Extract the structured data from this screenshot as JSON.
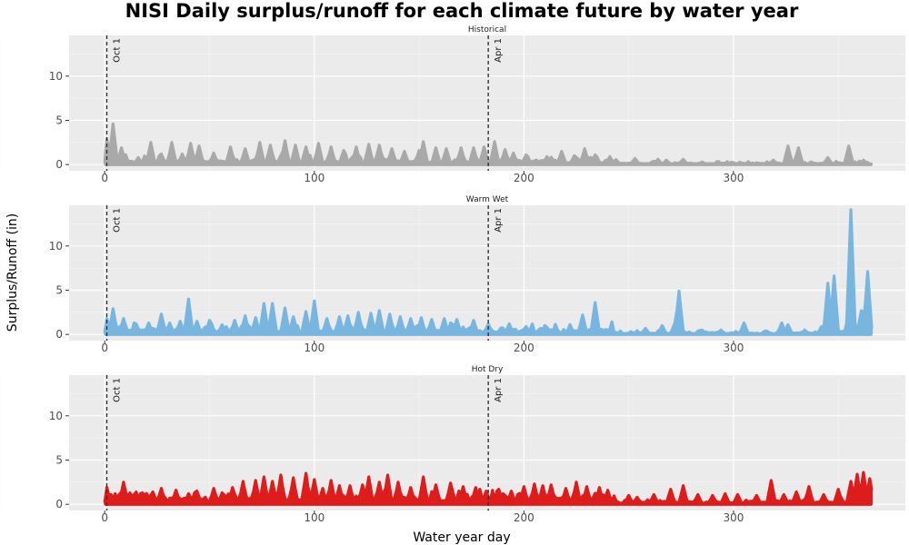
{
  "chart_data": {
    "type": "area",
    "title": "NISI Daily surplus/runoff for each climate future by water year",
    "xlabel": "Water year day",
    "ylabel": "Surplus/Runoff (in)",
    "xlim": [
      -17,
      382
    ],
    "ylim": [
      -0.7,
      14.6
    ],
    "x_ticks": [
      0,
      100,
      200,
      300
    ],
    "y_ticks": [
      0,
      5,
      10
    ],
    "grid": true,
    "legend": "none",
    "reference_lines": [
      {
        "x": 1,
        "label": "Oct 1"
      },
      {
        "x": 183,
        "label": "Apr 1"
      }
    ],
    "panels": [
      {
        "name": "Historical",
        "color": "#a9a9a9",
        "peaks": [
          [
            1,
            2.9
          ],
          [
            4,
            4.6
          ],
          [
            8,
            1.9
          ],
          [
            16,
            0.8
          ],
          [
            22,
            2.5
          ],
          [
            27,
            1.2
          ],
          [
            32,
            2.5
          ],
          [
            37,
            1.2
          ],
          [
            41,
            2.4
          ],
          [
            45,
            2.1
          ],
          [
            52,
            1.3
          ],
          [
            60,
            2.0
          ],
          [
            67,
            1.8
          ],
          [
            74,
            2.5
          ],
          [
            79,
            2.2
          ],
          [
            86,
            2.7
          ],
          [
            91,
            2.2
          ],
          [
            96,
            2.0
          ],
          [
            102,
            2.4
          ],
          [
            108,
            2.0
          ],
          [
            114,
            1.6
          ],
          [
            120,
            2.0
          ],
          [
            126,
            2.3
          ],
          [
            131,
            2.2
          ],
          [
            137,
            1.8
          ],
          [
            143,
            1.5
          ],
          [
            150,
            1.6
          ],
          [
            152,
            2.6
          ],
          [
            158,
            1.9
          ],
          [
            163,
            1.8
          ],
          [
            170,
            1.9
          ],
          [
            176,
            1.9
          ],
          [
            181,
            2.0
          ],
          [
            186,
            2.6
          ],
          [
            191,
            1.7
          ],
          [
            195,
            1.3
          ],
          [
            201,
            1.1
          ],
          [
            211,
            0.9
          ],
          [
            218,
            1.5
          ],
          [
            229,
            1.8
          ],
          [
            234,
            1.1
          ],
          [
            241,
            0.9
          ],
          [
            253,
            0.7
          ],
          [
            264,
            0.6
          ],
          [
            268,
            0.5
          ],
          [
            276,
            0.6
          ],
          [
            285,
            0.3
          ],
          [
            319,
            0.5
          ],
          [
            326,
            2.1
          ],
          [
            331,
            1.9
          ],
          [
            345,
            0.8
          ],
          [
            355,
            2.1
          ],
          [
            362,
            0.5
          ]
        ],
        "baseline": 0.35,
        "noise": 0.7
      },
      {
        "name": "Warm Wet",
        "color": "#79b6df",
        "peaks": [
          [
            1,
            1.8
          ],
          [
            4,
            2.9
          ],
          [
            9,
            1.8
          ],
          [
            15,
            1.2
          ],
          [
            21,
            1.3
          ],
          [
            27,
            2.3
          ],
          [
            31,
            1.3
          ],
          [
            36,
            1.5
          ],
          [
            40,
            4.0
          ],
          [
            44,
            1.5
          ],
          [
            50,
            1.6
          ],
          [
            56,
            1.1
          ],
          [
            62,
            1.6
          ],
          [
            67,
            2.1
          ],
          [
            72,
            1.9
          ],
          [
            76,
            3.5
          ],
          [
            80,
            3.5
          ],
          [
            86,
            3.0
          ],
          [
            90,
            2.0
          ],
          [
            96,
            2.6
          ],
          [
            100,
            3.8
          ],
          [
            106,
            1.8
          ],
          [
            112,
            2.0
          ],
          [
            116,
            2.1
          ],
          [
            121,
            2.5
          ],
          [
            127,
            2.4
          ],
          [
            131,
            2.7
          ],
          [
            136,
            2.3
          ],
          [
            141,
            2.0
          ],
          [
            146,
            1.8
          ],
          [
            151,
            1.9
          ],
          [
            156,
            1.7
          ],
          [
            162,
            1.8
          ],
          [
            168,
            1.7
          ],
          [
            176,
            1.6
          ],
          [
            183,
            1.2
          ],
          [
            193,
            1.2
          ],
          [
            201,
            0.9
          ],
          [
            210,
            1.0
          ],
          [
            222,
            1.0
          ],
          [
            228,
            2.2
          ],
          [
            234,
            3.6
          ],
          [
            242,
            0.5
          ],
          [
            258,
            0.7
          ],
          [
            266,
            1.0
          ],
          [
            272,
            1.3
          ],
          [
            274,
            4.9
          ],
          [
            285,
            0.5
          ],
          [
            294,
            0.5
          ],
          [
            305,
            1.3
          ],
          [
            315,
            0.4
          ],
          [
            323,
            1.3
          ],
          [
            326,
            1.1
          ],
          [
            334,
            0.5
          ],
          [
            342,
            0.9
          ],
          [
            345,
            5.8
          ],
          [
            348,
            6.6
          ],
          [
            356,
            14.1
          ],
          [
            361,
            2.7
          ],
          [
            364,
            7.1
          ],
          [
            368,
            1.4
          ]
        ],
        "baseline": 0.4,
        "noise": 0.9
      },
      {
        "name": "Hot Dry",
        "color": "#dd1c1c",
        "peaks": [
          [
            1,
            1.9
          ],
          [
            5,
            1.2
          ],
          [
            9,
            2.5
          ],
          [
            14,
            1.1
          ],
          [
            23,
            1.4
          ],
          [
            27,
            1.8
          ],
          [
            34,
            1.6
          ],
          [
            40,
            1.2
          ],
          [
            44,
            1.5
          ],
          [
            52,
            1.8
          ],
          [
            56,
            1.3
          ],
          [
            61,
            1.9
          ],
          [
            66,
            2.6
          ],
          [
            72,
            2.7
          ],
          [
            76,
            3.1
          ],
          [
            80,
            2.6
          ],
          [
            84,
            3.3
          ],
          [
            90,
            3.0
          ],
          [
            96,
            3.5
          ],
          [
            100,
            2.8
          ],
          [
            104,
            1.8
          ],
          [
            108,
            2.7
          ],
          [
            112,
            2.1
          ],
          [
            117,
            2.1
          ],
          [
            123,
            2.2
          ],
          [
            126,
            3.1
          ],
          [
            131,
            2.5
          ],
          [
            135,
            3.3
          ],
          [
            140,
            2.5
          ],
          [
            146,
            1.9
          ],
          [
            152,
            3.1
          ],
          [
            158,
            2.2
          ],
          [
            165,
            2.4
          ],
          [
            171,
            2.0
          ],
          [
            177,
            1.9
          ],
          [
            182,
            1.5
          ],
          [
            188,
            1.7
          ],
          [
            194,
            1.5
          ],
          [
            200,
            2.0
          ],
          [
            205,
            2.3
          ],
          [
            209,
            2.1
          ],
          [
            213,
            2.2
          ],
          [
            220,
            1.8
          ],
          [
            225,
            2.5
          ],
          [
            230,
            2.0
          ],
          [
            236,
            1.9
          ],
          [
            240,
            1.6
          ],
          [
            250,
            1.0
          ],
          [
            254,
            0.8
          ],
          [
            262,
            1.1
          ],
          [
            270,
            1.7
          ],
          [
            276,
            2.1
          ],
          [
            283,
            1.1
          ],
          [
            290,
            1.0
          ],
          [
            296,
            1.2
          ],
          [
            302,
            1.1
          ],
          [
            311,
            1.0
          ],
          [
            318,
            2.7
          ],
          [
            324,
            1.1
          ],
          [
            330,
            1.4
          ],
          [
            336,
            2.0
          ],
          [
            343,
            1.1
          ],
          [
            350,
            1.7
          ],
          [
            356,
            2.6
          ],
          [
            359,
            3.4
          ],
          [
            362,
            3.6
          ],
          [
            365,
            2.9
          ]
        ],
        "baseline": 0.55,
        "noise": 1.0
      }
    ]
  }
}
